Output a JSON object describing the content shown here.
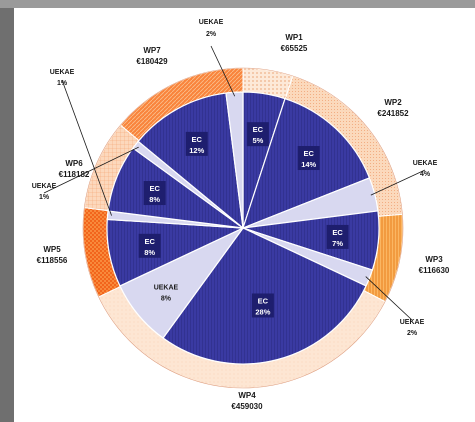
{
  "chart_data": {
    "type": "pie",
    "title": "",
    "outer_ring": [
      {
        "name": "WP1",
        "amount": "€65525",
        "value": 65525,
        "fill": "#fbe3cf",
        "pattern": "dots"
      },
      {
        "name": "WP2",
        "amount": "€241852",
        "value": 241852,
        "fill": "#fbd7b8",
        "pattern": "fine"
      },
      {
        "name": "WP3",
        "amount": "€116630",
        "value": 116630,
        "fill": "#f9a33c",
        "pattern": "vlines"
      },
      {
        "name": "WP4",
        "amount": "€459030",
        "value": 459030,
        "fill": "#fde5d2",
        "pattern": "light"
      },
      {
        "name": "WP5",
        "amount": "€118556",
        "value": 118556,
        "fill": "#f26a1c",
        "pattern": "checks"
      },
      {
        "name": "WP6",
        "amount": "€118182",
        "value": 118182,
        "fill": "#fbd1b1",
        "pattern": "grid"
      },
      {
        "name": "WP7",
        "amount": "€180429",
        "value": 180429,
        "fill": "#f9823a",
        "pattern": "diag"
      }
    ],
    "inner_pie": [
      {
        "label": "EC",
        "pct": "5%",
        "value": 5,
        "kind": "EC"
      },
      {
        "label": "EC",
        "pct": "14%",
        "value": 14,
        "kind": "EC"
      },
      {
        "label": "UEKAE",
        "pct": "4%",
        "value": 4,
        "kind": "UEKAE"
      },
      {
        "label": "EC",
        "pct": "7%",
        "value": 7,
        "kind": "EC"
      },
      {
        "label": "UEKAE",
        "pct": "2%",
        "value": 2,
        "kind": "UEKAE"
      },
      {
        "label": "EC",
        "pct": "28%",
        "value": 28,
        "kind": "EC"
      },
      {
        "label": "UEKAE",
        "pct": "8%",
        "value": 8,
        "kind": "UEKAE"
      },
      {
        "label": "EC",
        "pct": "8%",
        "value": 8,
        "kind": "EC"
      },
      {
        "label": "UEKAE",
        "pct": "1%",
        "value": 1,
        "kind": "UEKAE"
      },
      {
        "label": "EC",
        "pct": "8%",
        "value": 8,
        "kind": "EC"
      },
      {
        "label": "UEKAE",
        "pct": "1%",
        "value": 1,
        "kind": "UEKAE"
      },
      {
        "label": "EC",
        "pct": "12%",
        "value": 12,
        "kind": "EC"
      },
      {
        "label": "UEKAE",
        "pct": "2%",
        "value": 2,
        "kind": "UEKAE"
      }
    ],
    "colors": {
      "EC": "#3a3a9e",
      "UEKAE": "#d8d8f0",
      "ec_label_box": "#1e1e6e"
    }
  }
}
